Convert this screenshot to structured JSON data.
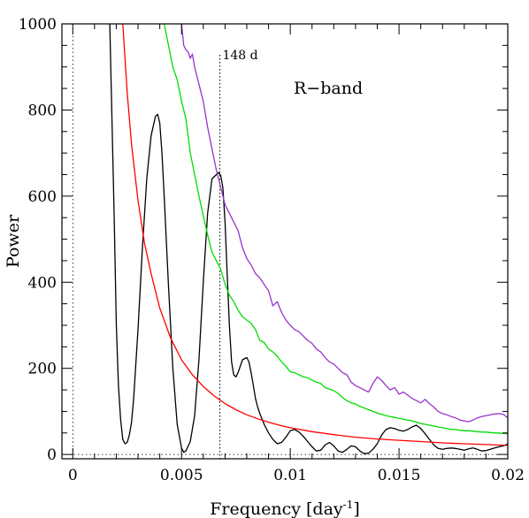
{
  "chart_data": {
    "type": "line",
    "title": "",
    "xlabel": "Frequency [day",
    "xlabel_sup": "-1",
    "xlabel_end": "]",
    "ylabel": "Power",
    "xlim": [
      -0.0005,
      0.02
    ],
    "ylim": [
      -10,
      1000
    ],
    "x_ticks": [
      0,
      0.005,
      0.01,
      0.015,
      0.02
    ],
    "x_tick_labels": [
      "0",
      "0.005",
      "0.01",
      "0.015",
      "0.02"
    ],
    "y_ticks": [
      0,
      200,
      400,
      600,
      800,
      1000
    ],
    "y_tick_labels": [
      "0",
      "200",
      "400",
      "600",
      "800",
      "1000"
    ],
    "grid": false,
    "annotations": {
      "band_label": "R−band",
      "period_label": "148 d",
      "period_frequency": 0.00676
    },
    "series": [
      {
        "color": "#000000",
        "x": [
          0.0017,
          0.0019,
          0.002,
          0.0021,
          0.0022,
          0.0023,
          0.0024,
          0.0025,
          0.0026,
          0.0027,
          0.0028,
          0.003,
          0.0032,
          0.0034,
          0.0036,
          0.0038,
          0.0039,
          0.004,
          0.0041,
          0.0042,
          0.0044,
          0.0046,
          0.0048,
          0.005,
          0.0051,
          0.0052,
          0.0054,
          0.0056,
          0.0058,
          0.006,
          0.0062,
          0.0064,
          0.0066,
          0.0067,
          0.0068,
          0.0069,
          0.007,
          0.0071,
          0.0072,
          0.0073,
          0.0074,
          0.0075,
          0.0076,
          0.0078,
          0.008,
          0.0081,
          0.0082,
          0.0083,
          0.0084,
          0.0085,
          0.0086,
          0.0088,
          0.009,
          0.0092,
          0.0094,
          0.0096,
          0.0098,
          0.01,
          0.0102,
          0.0104,
          0.0106,
          0.0108,
          0.011,
          0.0112,
          0.0114,
          0.0116,
          0.0118,
          0.012,
          0.0122,
          0.0124,
          0.0126,
          0.0128,
          0.013,
          0.0132,
          0.0134,
          0.0136,
          0.0138,
          0.014,
          0.0142,
          0.0144,
          0.0146,
          0.0148,
          0.015,
          0.0152,
          0.0154,
          0.0156,
          0.0158,
          0.016,
          0.0162,
          0.0164,
          0.0166,
          0.0168,
          0.017,
          0.0172,
          0.0174,
          0.0176,
          0.0178,
          0.018,
          0.0182,
          0.0184,
          0.0186,
          0.0188,
          0.019,
          0.0192,
          0.0194,
          0.0196,
          0.0198,
          0.02
        ],
        "y": [
          1000,
          560,
          300,
          160,
          80,
          35,
          25,
          28,
          45,
          75,
          130,
          290,
          480,
          640,
          740,
          785,
          790,
          770,
          700,
          600,
          390,
          200,
          70,
          15,
          5,
          8,
          30,
          90,
          220,
          400,
          560,
          640,
          650,
          655,
          648,
          620,
          540,
          420,
          300,
          215,
          185,
          180,
          190,
          220,
          225,
          215,
          190,
          160,
          130,
          110,
          95,
          70,
          50,
          35,
          25,
          28,
          40,
          55,
          58,
          52,
          42,
          30,
          18,
          8,
          10,
          22,
          28,
          20,
          8,
          5,
          12,
          20,
          18,
          8,
          2,
          3,
          12,
          25,
          45,
          58,
          62,
          60,
          56,
          54,
          58,
          64,
          68,
          60,
          48,
          35,
          22,
          14,
          12,
          14,
          15,
          14,
          12,
          10,
          13,
          15,
          12,
          8,
          9,
          12,
          15,
          18,
          20,
          24
        ]
      },
      {
        "color": "#ff0000",
        "x": [
          0.0023,
          0.0025,
          0.0027,
          0.003,
          0.0033,
          0.0036,
          0.004,
          0.0045,
          0.005,
          0.0055,
          0.006,
          0.0065,
          0.007,
          0.0075,
          0.008,
          0.0085,
          0.009,
          0.0095,
          0.01,
          0.011,
          0.012,
          0.013,
          0.014,
          0.015,
          0.016,
          0.017,
          0.018,
          0.019,
          0.02
        ],
        "y": [
          1000,
          840,
          720,
          590,
          490,
          420,
          340,
          270,
          220,
          185,
          158,
          136,
          118,
          104,
          92,
          83,
          75,
          68,
          62,
          53,
          46,
          40,
          36,
          33,
          30,
          27,
          25,
          23,
          21
        ]
      },
      {
        "color": "#00dd00",
        "x": [
          0.0042,
          0.0044,
          0.0046,
          0.0048,
          0.005,
          0.0052,
          0.0054,
          0.0056,
          0.0058,
          0.006,
          0.0062,
          0.0064,
          0.0066,
          0.0068,
          0.007,
          0.0072,
          0.0074,
          0.0076,
          0.0078,
          0.008,
          0.0082,
          0.0084,
          0.0086,
          0.0088,
          0.009,
          0.0092,
          0.0094,
          0.0096,
          0.0098,
          0.01,
          0.0102,
          0.0104,
          0.0106,
          0.0108,
          0.011,
          0.0112,
          0.0114,
          0.0116,
          0.0118,
          0.012,
          0.0122,
          0.0124,
          0.0126,
          0.0128,
          0.013,
          0.0132,
          0.0134,
          0.0136,
          0.0138,
          0.014,
          0.0142,
          0.0144,
          0.0146,
          0.0148,
          0.015,
          0.0152,
          0.0154,
          0.0156,
          0.0158,
          0.016,
          0.0162,
          0.0164,
          0.0166,
          0.0168,
          0.017,
          0.0172,
          0.0174,
          0.0176,
          0.0178,
          0.018,
          0.0182,
          0.0184,
          0.0186,
          0.0188,
          0.019,
          0.0192,
          0.0194,
          0.0196,
          0.0198,
          0.02
        ],
        "y": [
          1000,
          950,
          900,
          870,
          820,
          780,
          700,
          650,
          600,
          555,
          510,
          470,
          450,
          430,
          395,
          370,
          355,
          335,
          320,
          312,
          305,
          290,
          265,
          260,
          245,
          238,
          228,
          215,
          205,
          192,
          190,
          185,
          180,
          178,
          173,
          168,
          165,
          155,
          152,
          148,
          142,
          132,
          125,
          120,
          117,
          112,
          108,
          104,
          100,
          96,
          93,
          90,
          88,
          86,
          84,
          82,
          80,
          78,
          75,
          72,
          70,
          68,
          66,
          64,
          62,
          60,
          58,
          58,
          56,
          55,
          55,
          54,
          53,
          52,
          52,
          51,
          50,
          50,
          49,
          48
        ]
      },
      {
        "color": "#9933cc",
        "x": [
          0.005,
          0.0051,
          0.0052,
          0.0053,
          0.0054,
          0.0055,
          0.0056,
          0.0057,
          0.0058,
          0.006,
          0.0062,
          0.0064,
          0.0066,
          0.0068,
          0.007,
          0.0072,
          0.0074,
          0.0076,
          0.0078,
          0.008,
          0.0082,
          0.0084,
          0.0086,
          0.0088,
          0.009,
          0.0092,
          0.0094,
          0.0096,
          0.0098,
          0.01,
          0.0102,
          0.0104,
          0.0106,
          0.0108,
          0.011,
          0.0112,
          0.0114,
          0.0116,
          0.0118,
          0.012,
          0.0122,
          0.0124,
          0.0126,
          0.0128,
          0.013,
          0.0132,
          0.0134,
          0.0136,
          0.0138,
          0.014,
          0.0142,
          0.0144,
          0.0146,
          0.0148,
          0.015,
          0.0152,
          0.0154,
          0.0156,
          0.0158,
          0.016,
          0.0162,
          0.0164,
          0.0166,
          0.0168,
          0.017,
          0.0172,
          0.0174,
          0.0176,
          0.0178,
          0.018,
          0.0182,
          0.0184,
          0.0186,
          0.0188,
          0.019,
          0.0192,
          0.0194,
          0.0196,
          0.0198,
          0.02
        ],
        "y": [
          1000,
          950,
          940,
          935,
          920,
          930,
          900,
          880,
          860,
          820,
          760,
          710,
          660,
          620,
          580,
          560,
          540,
          520,
          480,
          455,
          440,
          420,
          410,
          395,
          380,
          345,
          355,
          330,
          312,
          300,
          290,
          285,
          275,
          265,
          258,
          245,
          238,
          225,
          215,
          210,
          200,
          190,
          185,
          168,
          160,
          155,
          150,
          145,
          165,
          180,
          172,
          160,
          150,
          155,
          140,
          145,
          138,
          130,
          125,
          120,
          128,
          118,
          110,
          100,
          95,
          92,
          88,
          85,
          80,
          78,
          76,
          80,
          85,
          88,
          90,
          92,
          94,
          95,
          93,
          85
        ]
      }
    ]
  }
}
